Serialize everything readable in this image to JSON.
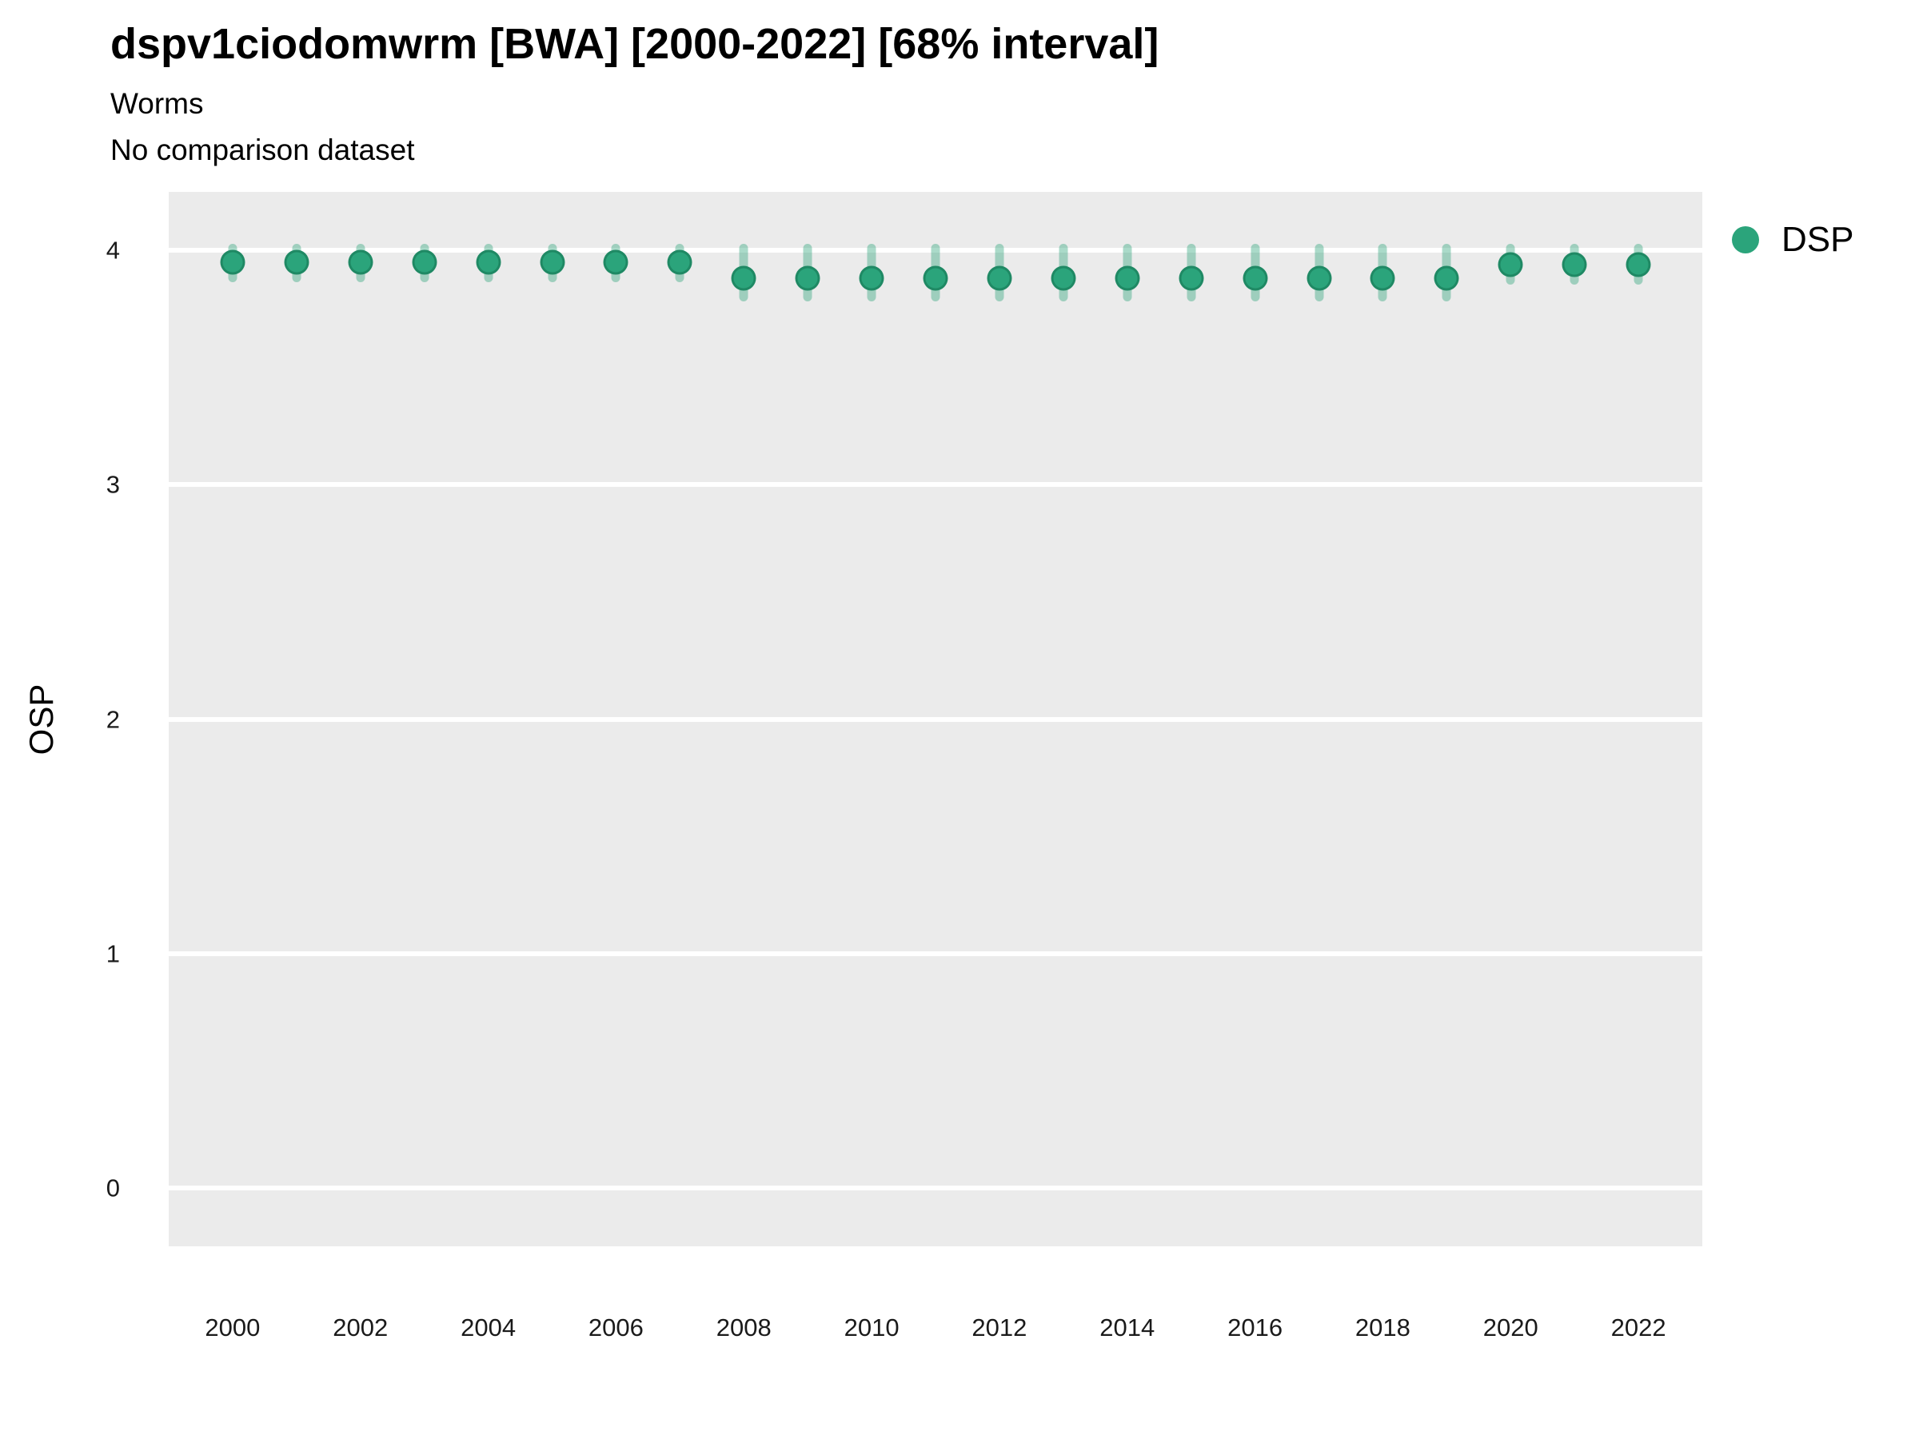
{
  "header": {
    "title": "dspv1ciodomwrm [BWA] [2000-2022] [68% interval]",
    "subtitle": "Worms",
    "note": "No comparison dataset"
  },
  "legend": {
    "position": "right",
    "items": [
      {
        "label": "DSP",
        "color": "#2BA47B"
      }
    ]
  },
  "colors": {
    "point_fill": "#2BA47B",
    "point_edge": "rgba(18,104,74,0.45)",
    "interval_bar": "rgba(42,163,120,0.40)",
    "panel_background": "#EBEBEB",
    "gridline": "#FFFFFF",
    "tick_text": "#1a1a1a"
  },
  "chart_data": {
    "type": "scatter",
    "title": "dspv1ciodomwrm [BWA] [2000-2022] [68% interval]",
    "subtitle": "Worms",
    "annotation": "No comparison dataset",
    "xlabel": "",
    "ylabel": "OSP",
    "xlim": [
      1999.0,
      2023.0
    ],
    "ylim": [
      -0.25,
      4.25
    ],
    "xticks": [
      2000,
      2002,
      2004,
      2006,
      2008,
      2010,
      2012,
      2014,
      2016,
      2018,
      2020,
      2022
    ],
    "yticks": [
      0,
      1,
      2,
      3,
      4
    ],
    "grid": "horizontal-major-only",
    "legend_position": "right",
    "interval_level": "68%",
    "series": [
      {
        "name": "DSP",
        "color": "#2BA47B",
        "points": [
          {
            "x": 2000,
            "y": 3.95,
            "low": 3.88,
            "high": 4.01
          },
          {
            "x": 2001,
            "y": 3.95,
            "low": 3.88,
            "high": 4.01
          },
          {
            "x": 2002,
            "y": 3.95,
            "low": 3.88,
            "high": 4.01
          },
          {
            "x": 2003,
            "y": 3.95,
            "low": 3.88,
            "high": 4.01
          },
          {
            "x": 2004,
            "y": 3.95,
            "low": 3.88,
            "high": 4.01
          },
          {
            "x": 2005,
            "y": 3.95,
            "low": 3.88,
            "high": 4.01
          },
          {
            "x": 2006,
            "y": 3.95,
            "low": 3.88,
            "high": 4.01
          },
          {
            "x": 2007,
            "y": 3.95,
            "low": 3.88,
            "high": 4.01
          },
          {
            "x": 2008,
            "y": 3.88,
            "low": 3.8,
            "high": 4.01
          },
          {
            "x": 2009,
            "y": 3.88,
            "low": 3.8,
            "high": 4.01
          },
          {
            "x": 2010,
            "y": 3.88,
            "low": 3.8,
            "high": 4.01
          },
          {
            "x": 2011,
            "y": 3.88,
            "low": 3.8,
            "high": 4.01
          },
          {
            "x": 2012,
            "y": 3.88,
            "low": 3.8,
            "high": 4.01
          },
          {
            "x": 2013,
            "y": 3.88,
            "low": 3.8,
            "high": 4.01
          },
          {
            "x": 2014,
            "y": 3.88,
            "low": 3.8,
            "high": 4.01
          },
          {
            "x": 2015,
            "y": 3.88,
            "low": 3.8,
            "high": 4.01
          },
          {
            "x": 2016,
            "y": 3.88,
            "low": 3.8,
            "high": 4.01
          },
          {
            "x": 2017,
            "y": 3.88,
            "low": 3.8,
            "high": 4.01
          },
          {
            "x": 2018,
            "y": 3.88,
            "low": 3.8,
            "high": 4.01
          },
          {
            "x": 2019,
            "y": 3.88,
            "low": 3.8,
            "high": 4.01
          },
          {
            "x": 2020,
            "y": 3.94,
            "low": 3.87,
            "high": 4.01
          },
          {
            "x": 2021,
            "y": 3.94,
            "low": 3.87,
            "high": 4.01
          },
          {
            "x": 2022,
            "y": 3.94,
            "low": 3.87,
            "high": 4.01
          }
        ]
      }
    ]
  }
}
